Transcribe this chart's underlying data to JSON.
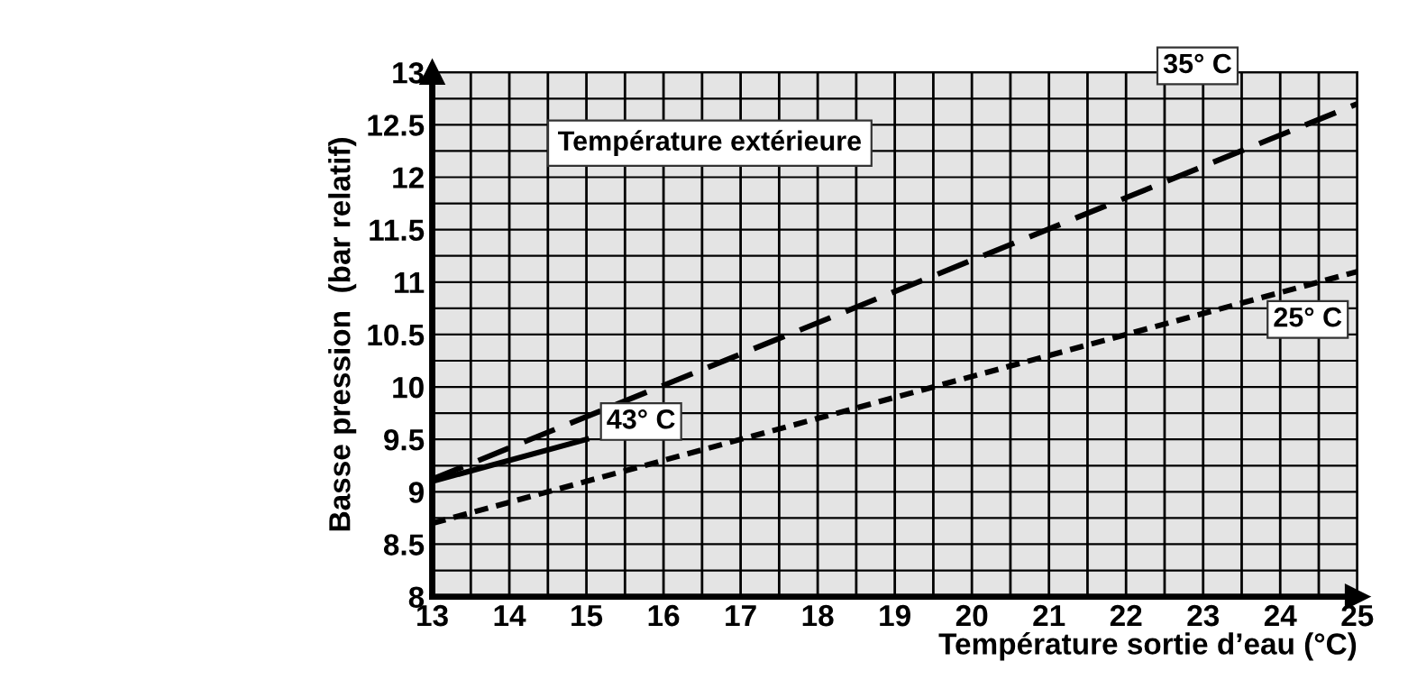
{
  "chart_data": {
    "type": "line",
    "legend_title": "Température extérieure",
    "xlabel": "Température sortie d’eau (°C)",
    "ylabel": "Basse pression  (bar relatif)",
    "series": [
      {
        "name": "35° C",
        "color": "#000000",
        "line_style": "dashed",
        "x": [
          13,
          25
        ],
        "values": [
          9.12,
          12.7
        ]
      },
      {
        "name": "25° C",
        "color": "#000000",
        "line_style": "dotted",
        "x": [
          13,
          25
        ],
        "values": [
          8.7,
          11.1
        ]
      },
      {
        "name": "43° C",
        "color": "#000000",
        "line_style": "solid",
        "x": [
          13,
          15
        ],
        "values": [
          9.1,
          9.5
        ]
      }
    ],
    "xlim": [
      13,
      25
    ],
    "xticks": [
      13,
      14,
      15,
      16,
      17,
      18,
      19,
      20,
      21,
      22,
      23,
      24,
      25
    ],
    "ylim": [
      8,
      13
    ],
    "yticks": [
      8,
      8.5,
      9,
      9.5,
      10,
      10.5,
      11,
      11.5,
      12,
      12.5,
      13
    ],
    "grid": true,
    "marker": "none"
  }
}
